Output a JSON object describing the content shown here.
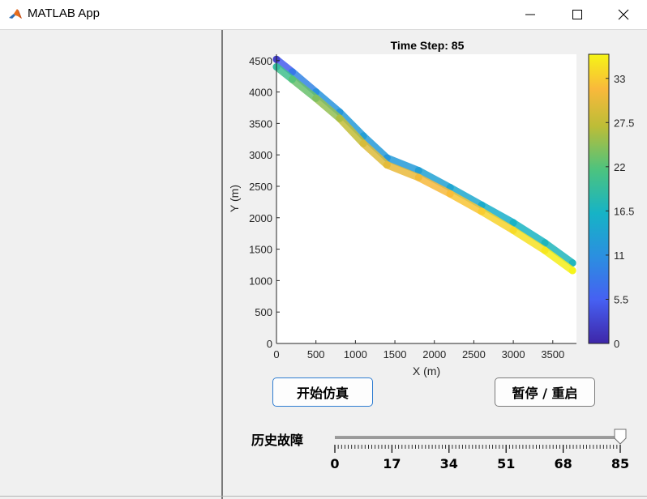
{
  "window": {
    "title": "MATLAB App",
    "controls": [
      "minimize-icon",
      "maximize-icon",
      "close-icon"
    ]
  },
  "chart_data": {
    "type": "scatter",
    "title": "Time Step: 85",
    "xlabel": "X (m)",
    "ylabel": "Y (m)",
    "xlim": [
      0,
      3800
    ],
    "ylim": [
      0,
      4600
    ],
    "x_ticks": [
      0,
      500,
      1000,
      1500,
      2000,
      2500,
      3000,
      3500
    ],
    "y_ticks": [
      0,
      500,
      1000,
      1500,
      2000,
      2500,
      3000,
      3500,
      4000,
      4500
    ],
    "grid": false,
    "colorbar": {
      "range": [
        0,
        36
      ],
      "ticks": [
        0,
        5.5,
        11,
        16.5,
        22,
        27.5,
        33
      ],
      "colormap": "parula"
    },
    "series": [
      {
        "points": [
          {
            "x": 0,
            "y": 4520,
            "c": 2
          },
          {
            "x": 200,
            "y": 4320,
            "c": 8
          },
          {
            "x": 500,
            "y": 4000,
            "c": 11
          },
          {
            "x": 800,
            "y": 3680,
            "c": 12
          },
          {
            "x": 1100,
            "y": 3300,
            "c": 13
          },
          {
            "x": 1400,
            "y": 2950,
            "c": 12
          },
          {
            "x": 1800,
            "y": 2750,
            "c": 13
          },
          {
            "x": 2200,
            "y": 2480,
            "c": 14
          },
          {
            "x": 2600,
            "y": 2200,
            "c": 15
          },
          {
            "x": 3000,
            "y": 1920,
            "c": 16
          },
          {
            "x": 3400,
            "y": 1600,
            "c": 17
          },
          {
            "x": 3750,
            "y": 1280,
            "c": 17
          }
        ]
      },
      {
        "points": [
          {
            "x": 0,
            "y": 4400,
            "c": 19
          },
          {
            "x": 200,
            "y": 4200,
            "c": 22
          },
          {
            "x": 500,
            "y": 3900,
            "c": 24
          },
          {
            "x": 800,
            "y": 3580,
            "c": 26
          },
          {
            "x": 1100,
            "y": 3180,
            "c": 29
          },
          {
            "x": 1400,
            "y": 2840,
            "c": 30
          },
          {
            "x": 1800,
            "y": 2640,
            "c": 31
          },
          {
            "x": 2200,
            "y": 2380,
            "c": 32
          },
          {
            "x": 2600,
            "y": 2100,
            "c": 33
          },
          {
            "x": 3000,
            "y": 1800,
            "c": 34
          },
          {
            "x": 3400,
            "y": 1480,
            "c": 35
          },
          {
            "x": 3750,
            "y": 1160,
            "c": 36
          }
        ]
      }
    ]
  },
  "buttons": {
    "start": "开始仿真",
    "pause": "暂停 / 重启"
  },
  "slider": {
    "label": "历史故障",
    "min": 0,
    "max": 85,
    "value": 85,
    "tick_labels": [
      "0",
      "17",
      "34",
      "51",
      "68",
      "85"
    ]
  }
}
